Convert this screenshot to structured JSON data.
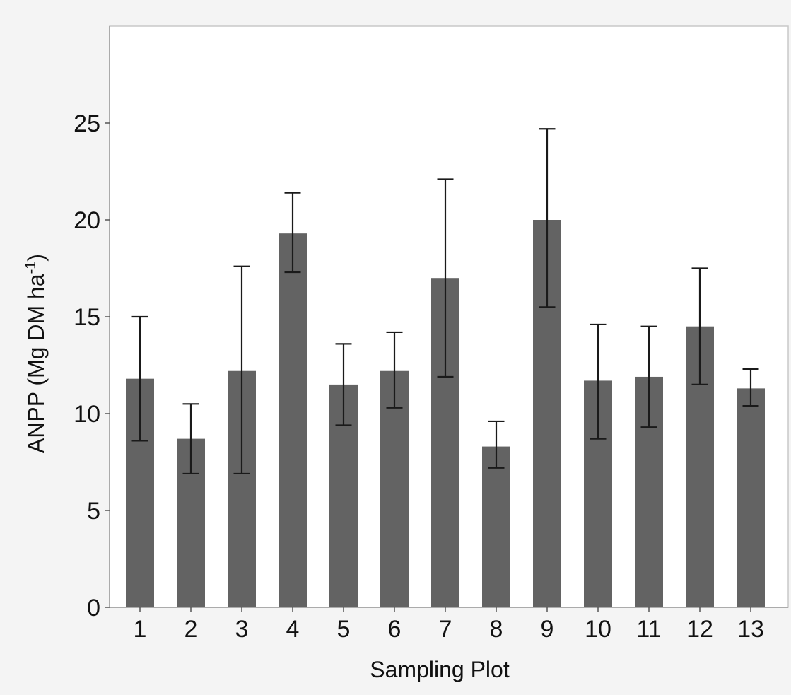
{
  "chart_data": {
    "type": "bar",
    "title": "",
    "xlabel": "Sampling Plot",
    "ylabel_main": "ANPP (Mg DM ha",
    "ylabel_sup": "-1",
    "ylabel_close": ")",
    "categories": [
      "1",
      "2",
      "3",
      "4",
      "5",
      "6",
      "7",
      "8",
      "9",
      "10",
      "11",
      "12",
      "13"
    ],
    "values": [
      11.8,
      8.7,
      12.2,
      19.3,
      11.5,
      12.2,
      17.0,
      8.3,
      20.0,
      11.7,
      11.9,
      14.5,
      11.3
    ],
    "error_low": [
      8.6,
      6.9,
      6.9,
      17.3,
      9.4,
      10.3,
      11.9,
      7.2,
      15.5,
      8.7,
      9.3,
      11.5,
      10.4
    ],
    "error_high": [
      15.0,
      10.5,
      17.6,
      21.4,
      13.6,
      14.2,
      22.1,
      9.6,
      24.7,
      14.6,
      14.5,
      17.5,
      12.3
    ],
    "ylim": [
      0,
      30
    ],
    "yticks": [
      0,
      5,
      10,
      15,
      20,
      25
    ],
    "ytick_labels": [
      "0",
      "5",
      "10",
      "15",
      "20",
      "25"
    ],
    "grid": false,
    "bar_color": "#636363",
    "plot_background": "#ffffff",
    "page_background": "#f4f4f4"
  }
}
